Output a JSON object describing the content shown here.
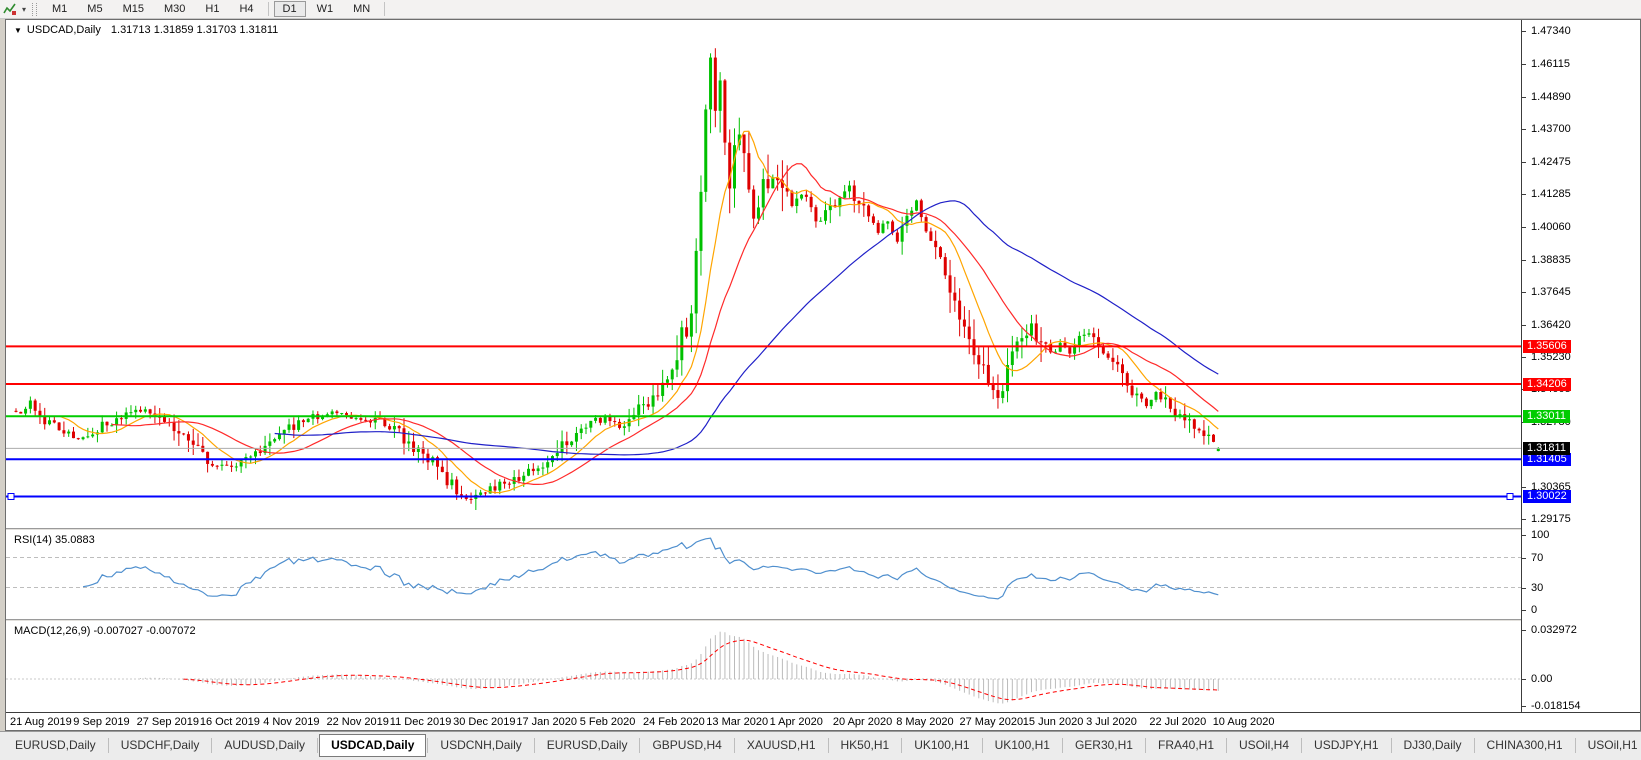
{
  "ui": {
    "toolbar": {
      "timeframes": [
        "M1",
        "M5",
        "M15",
        "M30",
        "H1",
        "H4",
        "D1",
        "W1",
        "MN"
      ],
      "active_timeframe": "D1",
      "dropdown_arrow": "▾"
    },
    "chart_header": {
      "collapse_arrow": "▼",
      "symbol_label": "USDCAD,Daily",
      "ohlc_label": "1.31713 1.31859 1.31703 1.31811"
    },
    "date_axis": [
      "21 Aug 2019",
      "9 Sep 2019",
      "27 Sep 2019",
      "16 Oct 2019",
      "4 Nov 2019",
      "22 Nov 2019",
      "11 Dec 2019",
      "30 Dec 2019",
      "17 Jan 2020",
      "5 Feb 2020",
      "24 Feb 2020",
      "13 Mar 2020",
      "1 Apr 2020",
      "20 Apr 2020",
      "8 May 2020",
      "27 May 2020",
      "15 Jun 2020",
      "3 Jul 2020",
      "22 Jul 2020",
      "10 Aug 2020"
    ],
    "tabs": {
      "items": [
        "EURUSD,Daily",
        "USDCHF,Daily",
        "AUDUSD,Daily",
        "USDCAD,Daily",
        "USDCNH,Daily",
        "EURUSD,Daily",
        "GBPUSD,H4",
        "XAUUSD,H1",
        "HK50,H1",
        "UK100,H1",
        "UK100,H1",
        "GER30,H1",
        "FRA40,H1",
        "USOil,H4",
        "USDJPY,H1",
        "DJ30,Daily",
        "CHINA300,H1",
        "USOil,H1"
      ],
      "active_index": 3,
      "scroll_left": "◄",
      "scroll_right": "►"
    }
  },
  "chart_data": {
    "type": "candlestick",
    "symbol": "USDCAD",
    "timeframe": "Daily",
    "title": "USDCAD,Daily",
    "last_ohlc": {
      "open": 1.31713,
      "high": 1.31859,
      "low": 1.31703,
      "close": 1.31811
    },
    "peak_high": 1.467,
    "trough_low": 1.2952,
    "num_candles": 252,
    "ylim": [
      1.2885,
      1.4775
    ],
    "up_color": "#00C000",
    "down_color": "#DE0000",
    "price_close_anchors": [
      [
        0,
        1.3315
      ],
      [
        3,
        1.335
      ],
      [
        6,
        1.329
      ],
      [
        10,
        1.3245
      ],
      [
        13,
        1.3215
      ],
      [
        17,
        1.3255
      ],
      [
        22,
        1.3295
      ],
      [
        27,
        1.333
      ],
      [
        31,
        1.3295
      ],
      [
        35,
        1.323
      ],
      [
        39,
        1.315
      ],
      [
        43,
        1.311
      ],
      [
        47,
        1.313
      ],
      [
        52,
        1.318
      ],
      [
        57,
        1.3255
      ],
      [
        62,
        1.3295
      ],
      [
        66,
        1.331
      ],
      [
        71,
        1.33
      ],
      [
        76,
        1.328
      ],
      [
        80,
        1.3235
      ],
      [
        84,
        1.3175
      ],
      [
        88,
        1.311
      ],
      [
        91,
        1.304
      ],
      [
        93,
        1.2995
      ],
      [
        96,
        1.301
      ],
      [
        100,
        1.304
      ],
      [
        104,
        1.3065
      ],
      [
        108,
        1.3095
      ],
      [
        112,
        1.3155
      ],
      [
        116,
        1.323
      ],
      [
        119,
        1.3265
      ],
      [
        123,
        1.3295
      ],
      [
        126,
        1.3265
      ],
      [
        129,
        1.3305
      ],
      [
        132,
        1.3355
      ],
      [
        135,
        1.3415
      ],
      [
        137,
        1.3475
      ],
      [
        139,
        1.359
      ],
      [
        141,
        1.37
      ],
      [
        142,
        1.395
      ],
      [
        143,
        1.418
      ],
      [
        144,
        1.442
      ],
      [
        145,
        1.46
      ],
      [
        146,
        1.442
      ],
      [
        147,
        1.45
      ],
      [
        148,
        1.433
      ],
      [
        149,
        1.419
      ],
      [
        150,
        1.428
      ],
      [
        151,
        1.434
      ],
      [
        152,
        1.425
      ],
      [
        153,
        1.413
      ],
      [
        154,
        1.406
      ],
      [
        156,
        1.415
      ],
      [
        158,
        1.422
      ],
      [
        160,
        1.416
      ],
      [
        162,
        1.41
      ],
      [
        164,
        1.414
      ],
      [
        166,
        1.406
      ],
      [
        168,
        1.402
      ],
      [
        170,
        1.407
      ],
      [
        172,
        1.412
      ],
      [
        174,
        1.415
      ],
      [
        176,
        1.409
      ],
      [
        178,
        1.403
      ],
      [
        180,
        1.399
      ],
      [
        182,
        1.402
      ],
      [
        184,
        1.396
      ],
      [
        186,
        1.404
      ],
      [
        188,
        1.409
      ],
      [
        190,
        1.399
      ],
      [
        192,
        1.391
      ],
      [
        194,
        1.384
      ],
      [
        196,
        1.375
      ],
      [
        198,
        1.365
      ],
      [
        200,
        1.355
      ],
      [
        202,
        1.346
      ],
      [
        204,
        1.338
      ],
      [
        206,
        1.343
      ],
      [
        208,
        1.353
      ],
      [
        210,
        1.359
      ],
      [
        212,
        1.363
      ],
      [
        214,
        1.357
      ],
      [
        216,
        1.353
      ],
      [
        218,
        1.3565
      ],
      [
        220,
        1.354
      ],
      [
        222,
        1.358
      ],
      [
        224,
        1.3605
      ],
      [
        226,
        1.356
      ],
      [
        228,
        1.3515
      ],
      [
        230,
        1.347
      ],
      [
        232,
        1.342
      ],
      [
        234,
        1.338
      ],
      [
        236,
        1.3345
      ],
      [
        238,
        1.3385
      ],
      [
        240,
        1.3355
      ],
      [
        242,
        1.332
      ],
      [
        244,
        1.329
      ],
      [
        246,
        1.3255
      ],
      [
        248,
        1.3225
      ],
      [
        250,
        1.3195
      ],
      [
        251,
        1.3181
      ]
    ],
    "volatility_zones": [
      [
        138,
        162,
        0.005
      ],
      [
        195,
        214,
        0.0028
      ]
    ],
    "moving_averages": [
      {
        "type": "sma",
        "period": 10,
        "color": "#FFA500"
      },
      {
        "type": "sma",
        "period": 21,
        "color": "#FF2A2A"
      },
      {
        "type": "sma",
        "period": 55,
        "color": "#2020C8"
      }
    ],
    "horizontal_lines": [
      {
        "price": 1.35606,
        "label": "1.35606",
        "color": "#FF0000",
        "selected": false
      },
      {
        "price": 1.34206,
        "label": "1.34206",
        "color": "#FF0000",
        "selected": false
      },
      {
        "price": 1.33011,
        "label": "1.33011",
        "color": "#00CC00",
        "selected": false
      },
      {
        "price": 1.31405,
        "label": "1.31405",
        "color": "#0000FF",
        "selected": false
      },
      {
        "price": 1.30022,
        "label": "1.30022",
        "color": "#0000FF",
        "selected": true
      }
    ],
    "current_price_line": {
      "price": 1.31811,
      "label": "1.31811",
      "line_color": "#ABABAB",
      "badge_color": "#000000"
    },
    "price_ticks": [
      {
        "t": "1.47340",
        "v": 1.4734
      },
      {
        "t": "1.46115",
        "v": 1.46115
      },
      {
        "t": "1.44890",
        "v": 1.4489
      },
      {
        "t": "1.43700",
        "v": 1.437
      },
      {
        "t": "1.42475",
        "v": 1.42475
      },
      {
        "t": "1.41285",
        "v": 1.41285
      },
      {
        "t": "1.40060",
        "v": 1.4006
      },
      {
        "t": "1.38835",
        "v": 1.38835
      },
      {
        "t": "1.37645",
        "v": 1.37645
      },
      {
        "t": "1.36420",
        "v": 1.3642
      },
      {
        "t": "1.35230",
        "v": 1.3523
      },
      {
        "t": "1.34005",
        "v": 1.34005
      },
      {
        "t": "1.32780",
        "v": 1.3278
      },
      {
        "t": "1.30365",
        "v": 1.30365
      },
      {
        "t": "1.29175",
        "v": 1.29175
      }
    ],
    "indicators": {
      "rsi": {
        "label": "RSI(14) 35.0883",
        "period": 14,
        "current": 35.0883,
        "range": [
          0,
          100
        ],
        "axis_labels": [
          100,
          70,
          30,
          0
        ],
        "dashed_levels": [
          70,
          30
        ],
        "line_color": "#4F8FCE"
      },
      "macd": {
        "label": "MACD(12,26,9) -0.007027 -0.007072",
        "fast": 12,
        "slow": 26,
        "signal": 9,
        "macd_current": -0.007027,
        "signal_current": -0.007072,
        "ylim": [
          -0.018154,
          0.032972
        ],
        "axis_labels": [
          "0.032972",
          "0.00",
          "-0.018154"
        ],
        "axis_values": [
          0.032972,
          0,
          -0.018154
        ],
        "histogram_color": "#BBBBBB",
        "signal_color": "#FF0000"
      }
    }
  }
}
